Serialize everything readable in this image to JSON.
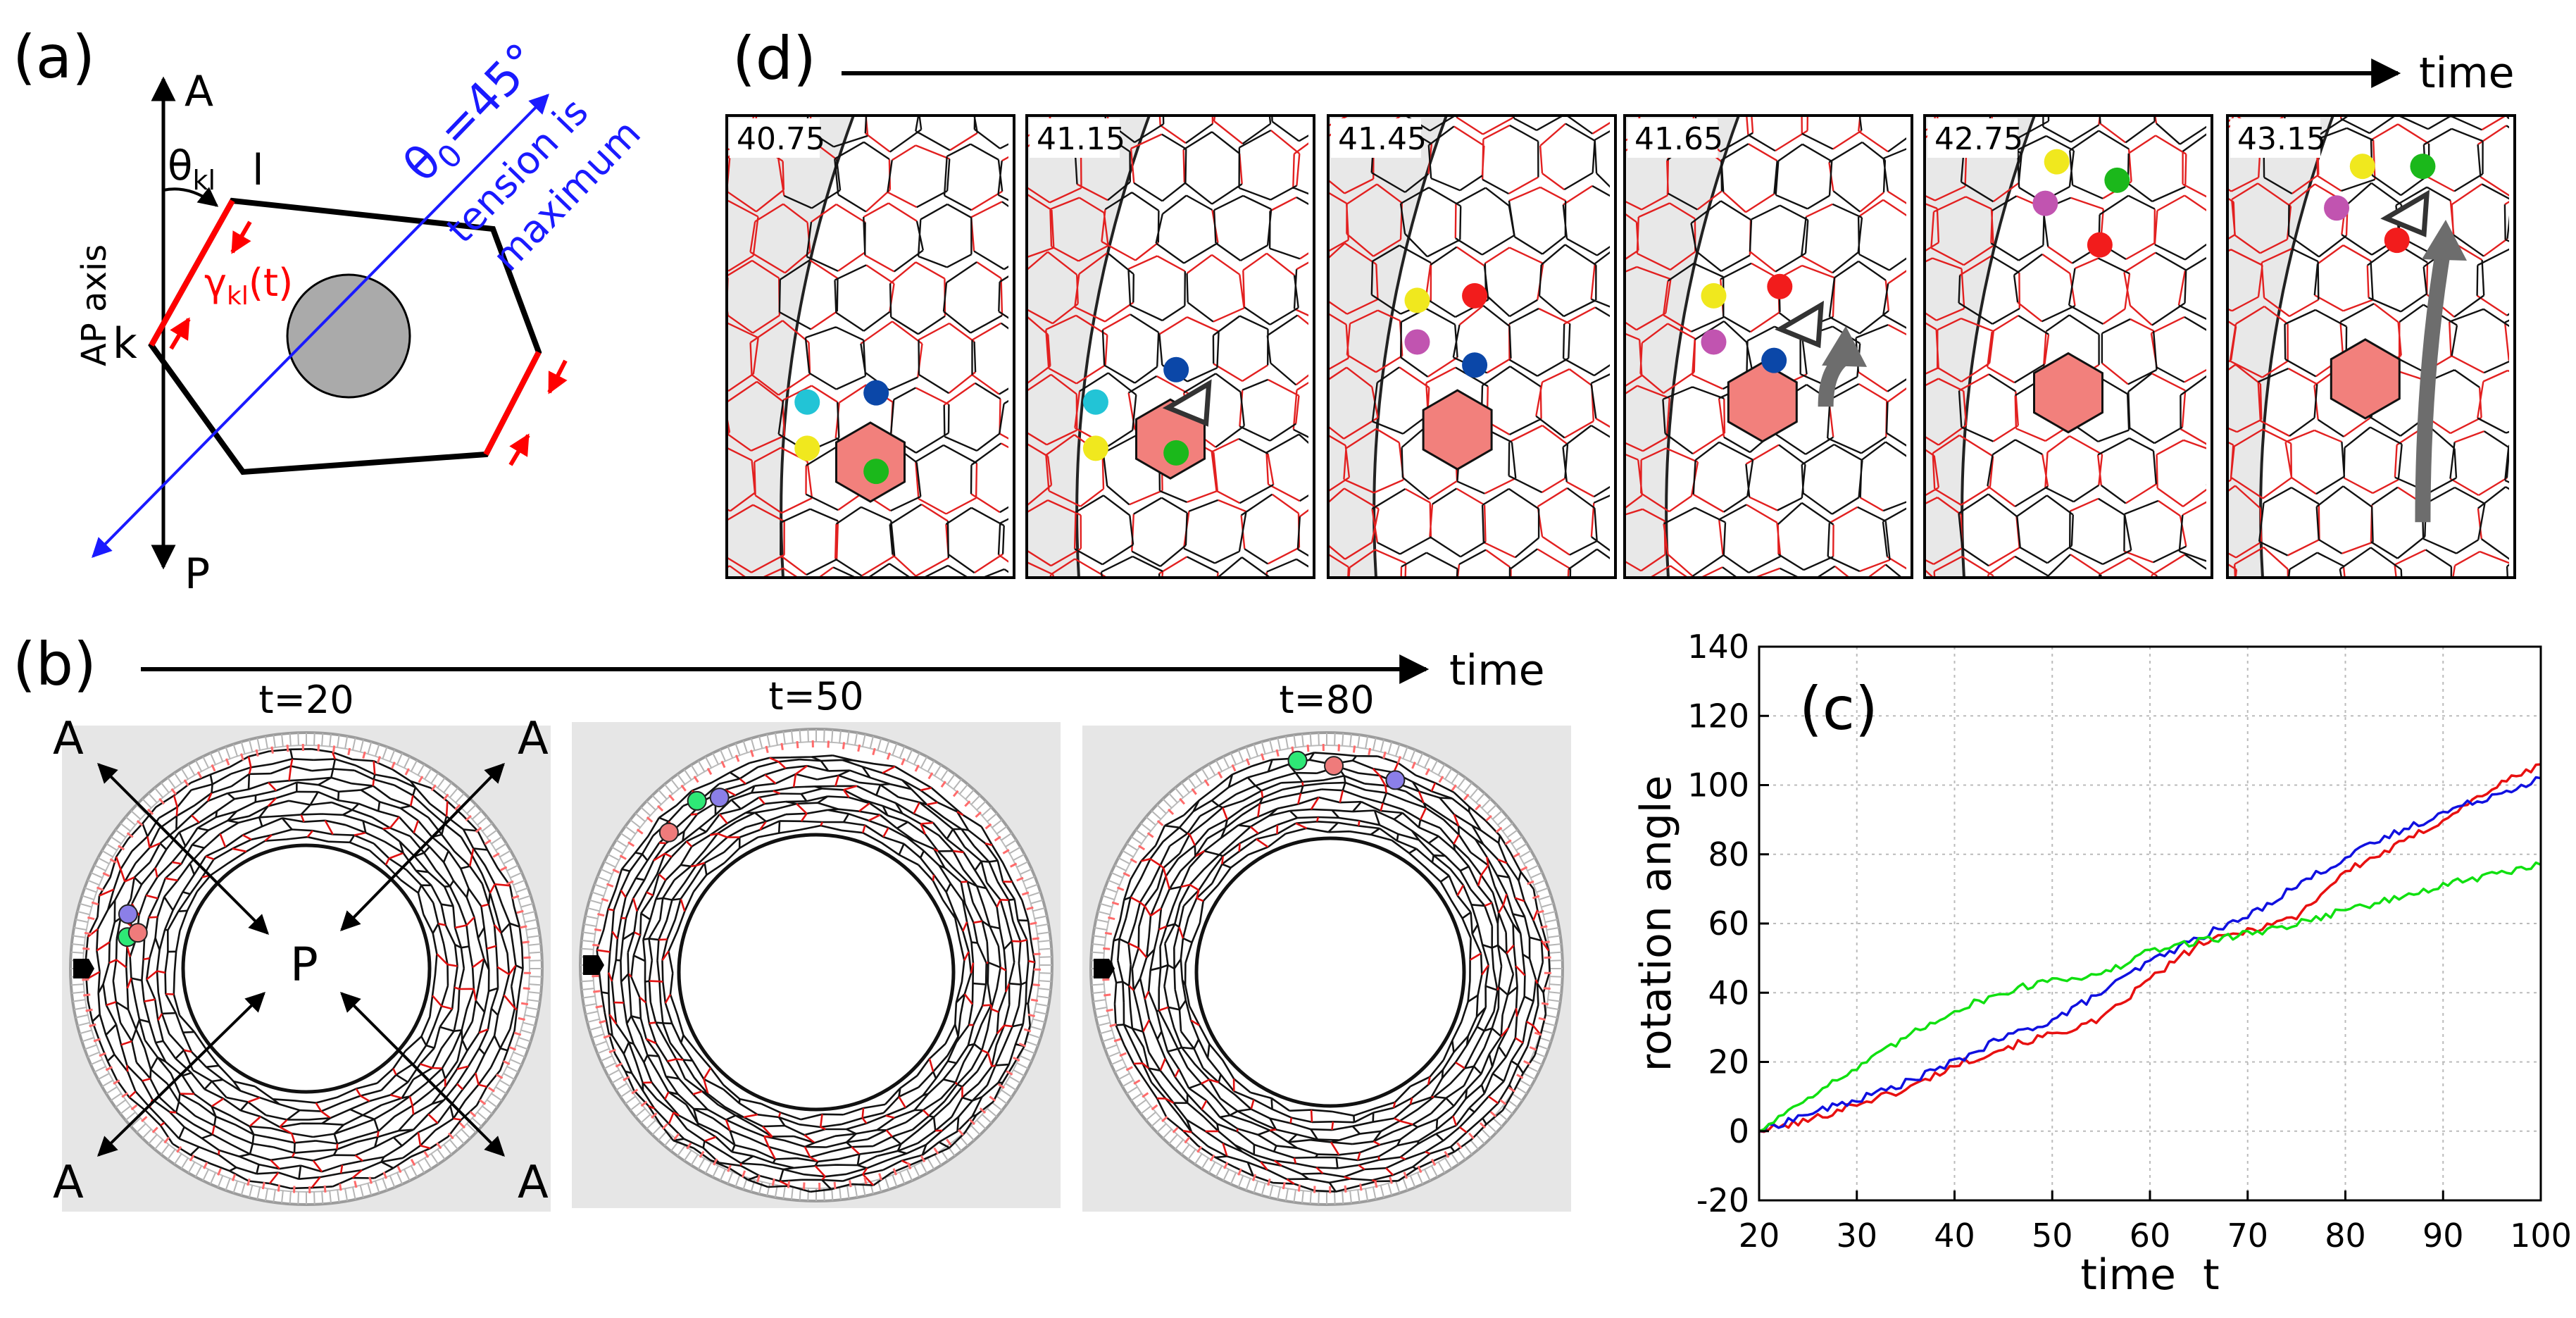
{
  "panel_labels": {
    "a": "(a)",
    "b": "(b)",
    "c": "(c)",
    "d": "(d)"
  },
  "panel_a": {
    "axis_top": "A",
    "axis_bottom": "P",
    "axis_name": "AP axis",
    "theta_symbol": "θ",
    "theta_sub": "kl",
    "vertex_l": "l",
    "vertex_k": "k",
    "gamma_symbol": "γ",
    "gamma_sub": "kl",
    "gamma_arg": "(t)",
    "theta0_symbol": "θ",
    "theta0_sub": "0",
    "theta0_value": "=45°",
    "tension_line1": "tension is",
    "tension_line2": "maximum",
    "colors": {
      "tension": "#1a1aff",
      "junction": "#ff0000",
      "nucleus": "#aaaaaa"
    }
  },
  "panel_b": {
    "time_label": "time",
    "snapshots": [
      {
        "label": "t=20"
      },
      {
        "label": "t=50"
      },
      {
        "label": "t=80"
      }
    ],
    "axis_labels": {
      "A": "A",
      "P": "P"
    }
  },
  "panel_d": {
    "time_label": "time",
    "frames": [
      {
        "label": "40.75"
      },
      {
        "label": "41.15"
      },
      {
        "label": "41.45"
      },
      {
        "label": "41.65"
      },
      {
        "label": "42.75"
      },
      {
        "label": "43.15"
      }
    ],
    "dot_colors": {
      "cyan": "#22c4d6",
      "yellow": "#f0e81e",
      "blue": "#0b47a8",
      "green": "#1bb81b",
      "red": "#f21c1c",
      "magenta": "#c154b0"
    }
  },
  "chart_data": {
    "type": "line",
    "title": "",
    "xlabel": "time  t",
    "ylabel": "rotation angle",
    "xlim": [
      20,
      100
    ],
    "ylim": [
      -20,
      140
    ],
    "xticks": [
      20,
      30,
      40,
      50,
      60,
      70,
      80,
      90,
      100
    ],
    "yticks": [
      -20,
      0,
      20,
      40,
      60,
      80,
      100,
      120,
      140
    ],
    "grid": true,
    "series": [
      {
        "name": "red",
        "color": "#e81010",
        "x": [
          20,
          25,
          30,
          35,
          40,
          45,
          50,
          55,
          60,
          65,
          70,
          75,
          80,
          85,
          90,
          95,
          100
        ],
        "values": [
          0,
          3,
          8,
          12,
          19,
          24,
          28,
          32,
          44,
          54,
          58,
          62,
          75,
          82,
          90,
          99,
          106
        ]
      },
      {
        "name": "blue",
        "color": "#1010e0",
        "x": [
          20,
          25,
          30,
          35,
          40,
          45,
          50,
          55,
          60,
          65,
          70,
          75,
          80,
          85,
          90,
          95,
          100
        ],
        "values": [
          0,
          5,
          9,
          14,
          20,
          27,
          32,
          40,
          49,
          56,
          62,
          71,
          79,
          86,
          92,
          97,
          102
        ]
      },
      {
        "name": "green",
        "color": "#10e010",
        "x": [
          20,
          25,
          30,
          35,
          40,
          45,
          50,
          55,
          60,
          65,
          70,
          75,
          80,
          85,
          90,
          95,
          100
        ],
        "values": [
          0,
          10,
          18,
          27,
          35,
          40,
          44,
          45,
          52,
          55,
          57,
          60,
          64,
          67,
          71,
          74,
          77
        ]
      }
    ]
  }
}
